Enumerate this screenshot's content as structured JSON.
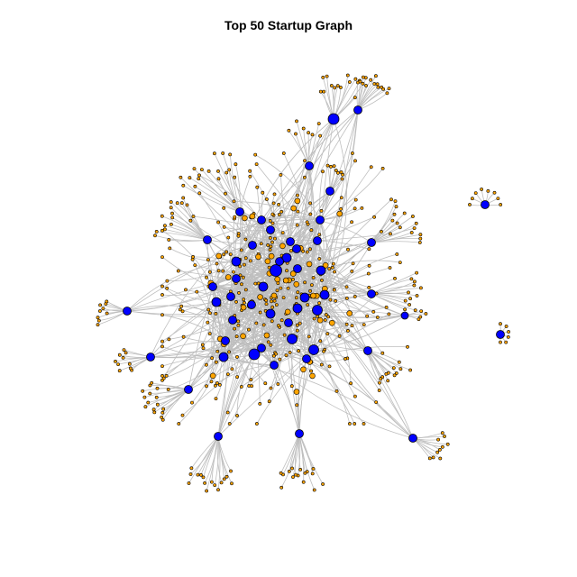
{
  "title": "Top 50 Startup Graph",
  "graph": {
    "type": "network",
    "node_kinds": [
      {
        "kind": "startup",
        "color": "#0000ff"
      },
      {
        "kind": "connection",
        "color": "#ffa500"
      }
    ],
    "edge_color": "#bebebe",
    "node_border_color": "#000000",
    "background": "#ffffff"
  }
}
